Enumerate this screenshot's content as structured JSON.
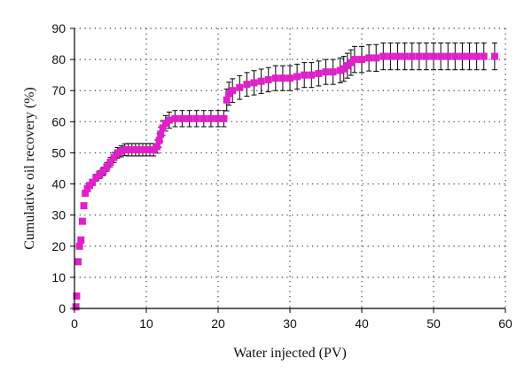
{
  "chart_data": {
    "type": "scatter",
    "xlabel": "Water injected (PV)",
    "ylabel": "Cumulative oil recovery (%)",
    "xlim": [
      0,
      60
    ],
    "ylim": [
      0,
      90
    ],
    "xticks": [
      0,
      10,
      20,
      30,
      40,
      50,
      60
    ],
    "yticks": [
      0,
      10,
      20,
      30,
      40,
      50,
      60,
      70,
      80,
      90
    ],
    "grid": "dotted",
    "legend": "none",
    "marker_color": "#e020c8",
    "error_bar_color": "#000000",
    "series": [
      {
        "x": [
          0.2,
          0.3,
          0.5,
          0.7,
          0.9,
          1.1,
          1.3,
          1.5,
          1.8,
          2.1,
          2.5,
          3.0,
          3.5,
          4.0,
          4.5,
          5.0,
          5.5,
          6.0,
          6.5,
          7.0,
          7.5,
          8.0,
          8.5,
          9.0,
          9.5,
          10.0,
          10.5,
          11.0,
          11.5,
          11.8,
          12.0,
          12.3,
          12.7,
          13.2,
          14.0,
          15.0,
          16.0,
          17.0,
          18.0,
          19.0,
          20.0,
          20.8,
          21.2,
          21.5,
          22.0,
          23.0,
          24.0,
          25.0,
          26.0,
          27.0,
          28.0,
          29.0,
          30.0,
          31.0,
          32.0,
          33.0,
          34.0,
          35.0,
          36.0,
          37.0,
          37.5,
          38.0,
          38.5,
          39.0,
          40.0,
          41.0,
          42.0,
          43.0,
          44.0,
          45.0,
          46.0,
          47.0,
          48.0,
          49.0,
          50.0,
          51.0,
          52.0,
          53.0,
          54.0,
          55.0,
          56.0,
          57.0,
          58.5
        ],
        "y": [
          0.5,
          4,
          15,
          20,
          22,
          28,
          33,
          37,
          38.5,
          39.5,
          40.5,
          42,
          43,
          44,
          45.5,
          47,
          48.5,
          50,
          50.5,
          51,
          51,
          51,
          51,
          51,
          51,
          51,
          51,
          51,
          52,
          54,
          56,
          58,
          59.5,
          60.5,
          61,
          61,
          61,
          61,
          61,
          61,
          61,
          61,
          67,
          69,
          70,
          71,
          72,
          72.5,
          73,
          73.5,
          74,
          74,
          74,
          74.5,
          75,
          75,
          75.5,
          76,
          76,
          76.5,
          77,
          78,
          79,
          80,
          80,
          80.5,
          80.5,
          81,
          81,
          81,
          81,
          81,
          81,
          81,
          81,
          81,
          81,
          81,
          81,
          81,
          81,
          81,
          81
        ],
        "error": [
          0.3,
          0.3,
          0.4,
          0.4,
          0.4,
          0.5,
          0.6,
          0.7,
          0.8,
          0.9,
          1.0,
          1.1,
          1.2,
          1.3,
          1.4,
          1.5,
          1.6,
          1.7,
          1.8,
          1.9,
          2.0,
          2.0,
          2.0,
          2.0,
          2.0,
          2.0,
          2.0,
          2.0,
          2.1,
          2.2,
          2.3,
          2.4,
          2.5,
          2.6,
          2.6,
          2.6,
          2.6,
          2.6,
          2.6,
          2.6,
          2.6,
          2.6,
          3.5,
          3.7,
          3.8,
          3.8,
          3.8,
          3.9,
          3.9,
          3.9,
          4.0,
          4.0,
          4.0,
          4.0,
          4.0,
          4.0,
          4.0,
          4.0,
          4.0,
          4.0,
          4.0,
          4.0,
          4.1,
          4.2,
          4.2,
          4.2,
          4.3,
          4.3,
          4.3,
          4.3,
          4.3,
          4.3,
          4.3,
          4.3,
          4.3,
          4.3,
          4.3,
          4.3,
          4.3,
          4.3,
          4.3,
          4.3,
          4.3
        ]
      }
    ]
  }
}
